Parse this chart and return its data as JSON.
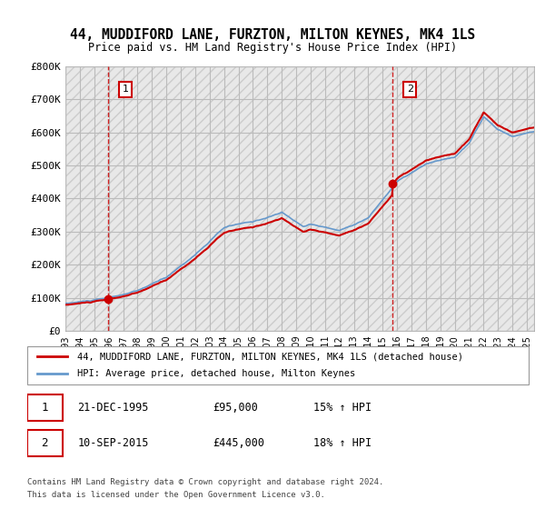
{
  "title": "44, MUDDIFORD LANE, FURZTON, MILTON KEYNES, MK4 1LS",
  "subtitle": "Price paid vs. HM Land Registry's House Price Index (HPI)",
  "legend_line1": "44, MUDDIFORD LANE, FURZTON, MILTON KEYNES, MK4 1LS (detached house)",
  "legend_line2": "HPI: Average price, detached house, Milton Keynes",
  "footer1": "Contains HM Land Registry data © Crown copyright and database right 2024.",
  "footer2": "This data is licensed under the Open Government Licence v3.0.",
  "annotation1_date": "21-DEC-1995",
  "annotation1_price": "£95,000",
  "annotation1_hpi": "15% ↑ HPI",
  "annotation2_date": "10-SEP-2015",
  "annotation2_price": "£445,000",
  "annotation2_hpi": "18% ↑ HPI",
  "purchase1_x": 1995.97,
  "purchase1_y": 95000,
  "purchase2_x": 2015.69,
  "purchase2_y": 445000,
  "vline1_x": 1995.97,
  "vline2_x": 2015.69,
  "price_line_color": "#cc0000",
  "hpi_line_color": "#6699cc",
  "grid_color": "#bbbbbb",
  "ylim": [
    0,
    800000
  ],
  "xlim_start": 1993,
  "xlim_end": 2025.5,
  "yticks": [
    0,
    100000,
    200000,
    300000,
    400000,
    500000,
    600000,
    700000,
    800000
  ],
  "ytick_labels": [
    "£0",
    "£100K",
    "£200K",
    "£300K",
    "£400K",
    "£500K",
    "£600K",
    "£700K",
    "£800K"
  ],
  "xticks": [
    1993,
    1994,
    1995,
    1996,
    1997,
    1998,
    1999,
    2000,
    2001,
    2002,
    2003,
    2004,
    2005,
    2006,
    2007,
    2008,
    2009,
    2010,
    2011,
    2012,
    2013,
    2014,
    2015,
    2016,
    2017,
    2018,
    2019,
    2020,
    2021,
    2022,
    2023,
    2024,
    2025
  ]
}
